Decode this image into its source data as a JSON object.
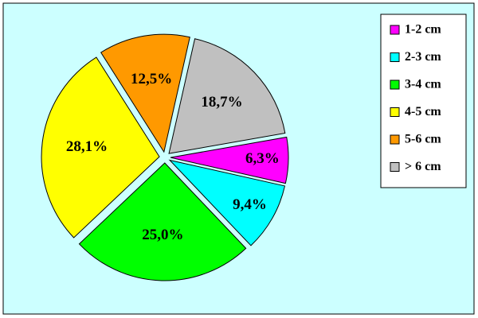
{
  "chart_data": {
    "type": "pie",
    "categories": [
      "1-2 cm",
      "2-3 cm",
      "3-4 cm",
      "4-5 cm",
      "5-6 cm",
      "> 6 cm"
    ],
    "values": [
      6.3,
      9.4,
      25.0,
      28.1,
      12.5,
      18.7
    ],
    "value_labels": [
      "6,3%",
      "9,4%",
      "25,0%",
      "28,1%",
      "12,5%",
      "18,7%"
    ],
    "colors": [
      "#ff00ff",
      "#00ffff",
      "#00ff00",
      "#ffff00",
      "#ff9900",
      "#c0c0c0"
    ],
    "legend": "right"
  }
}
